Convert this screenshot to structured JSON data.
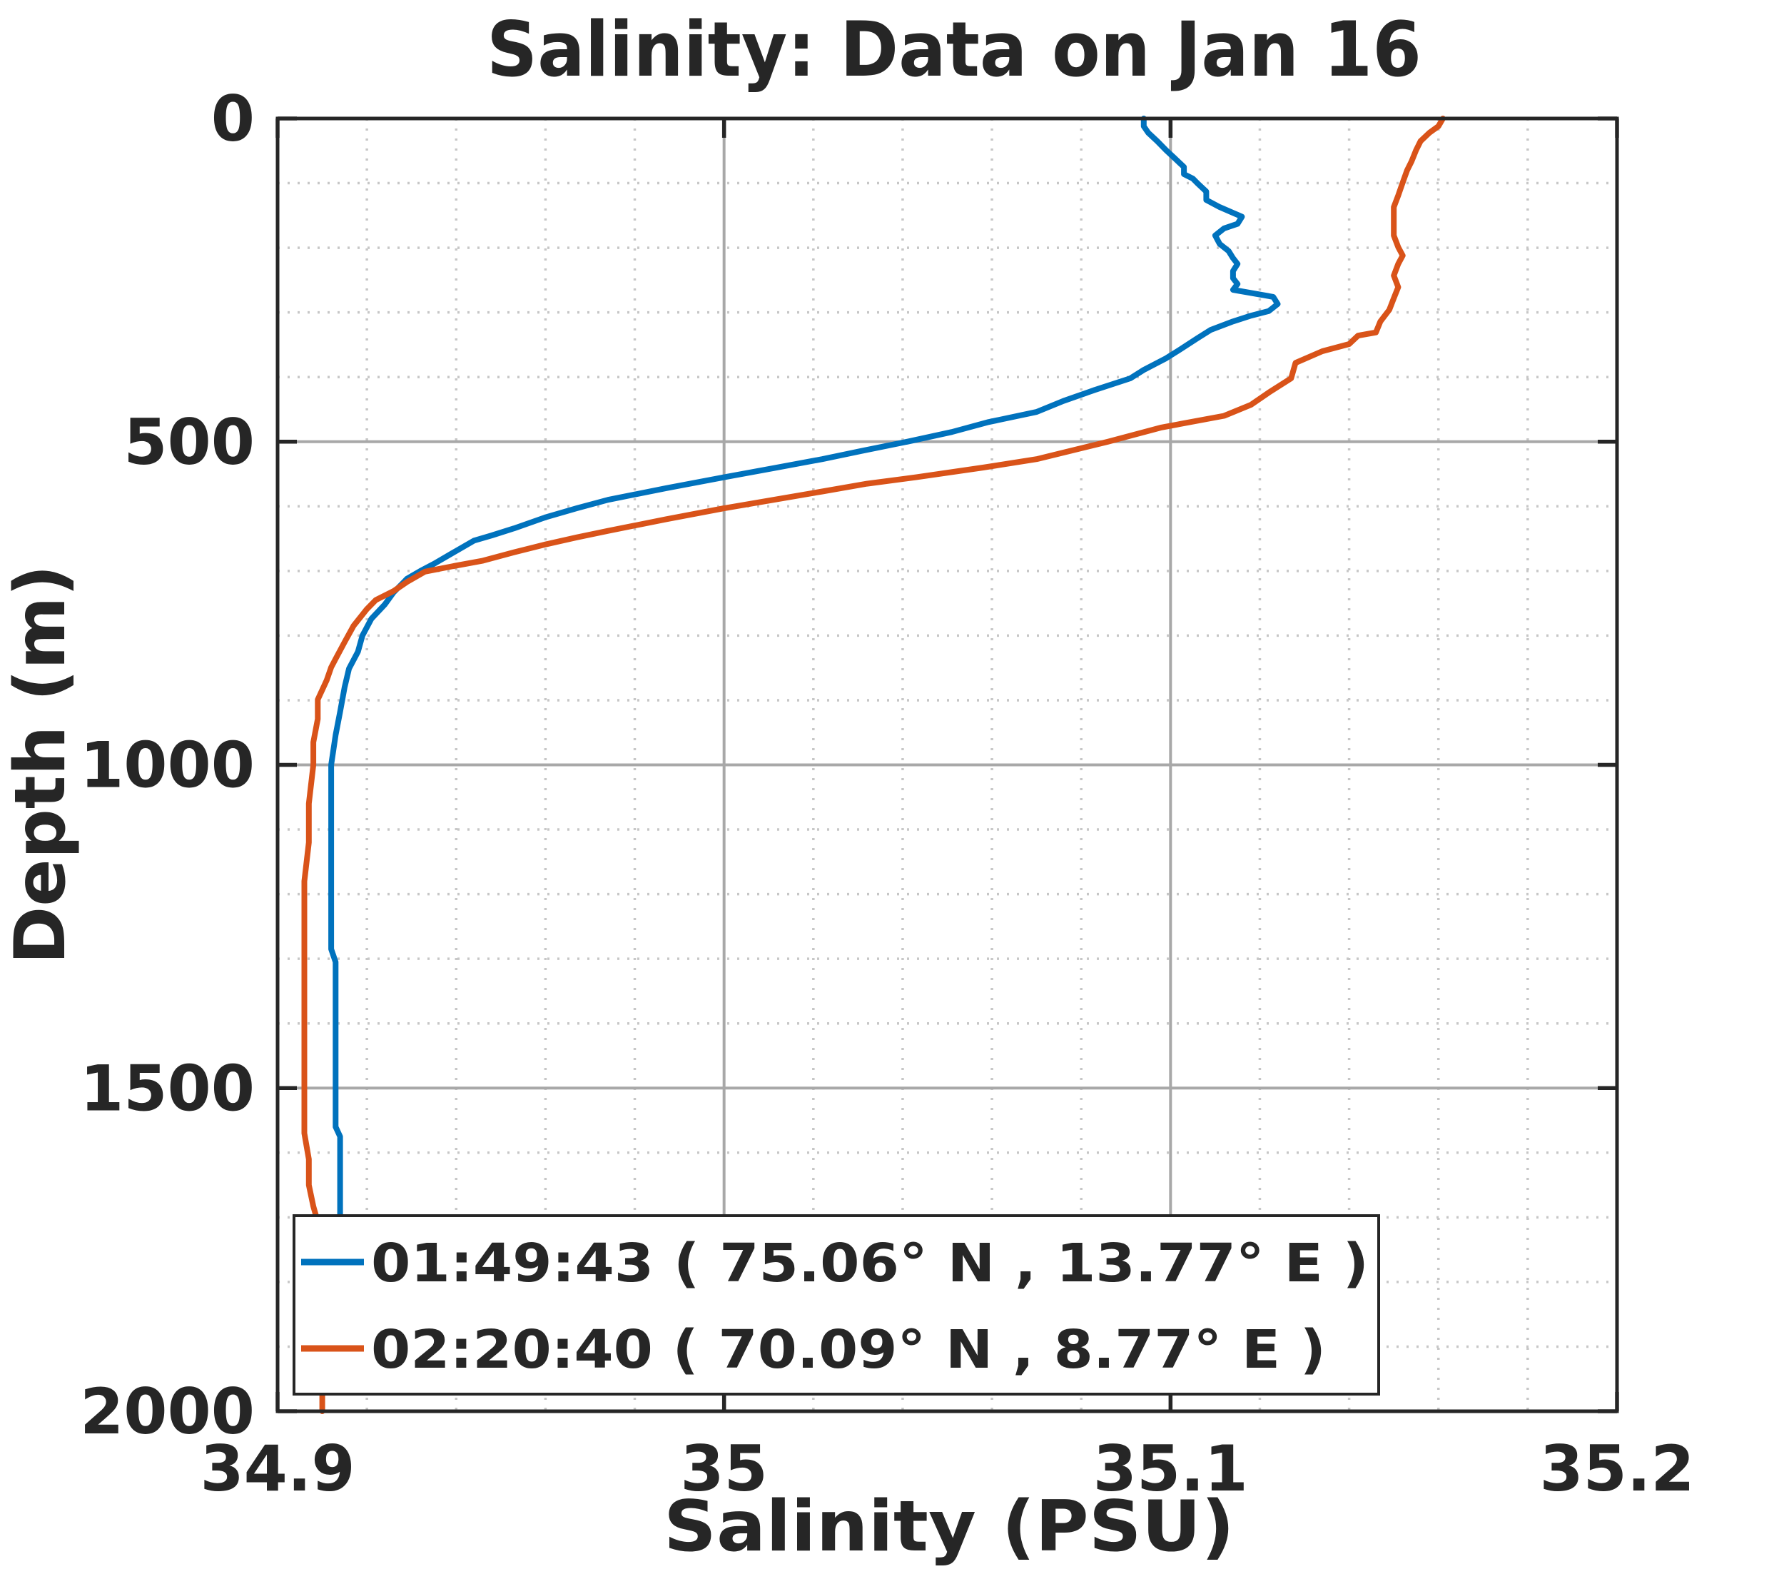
{
  "figure": {
    "background": "#ffffff"
  },
  "chart_data": {
    "type": "line",
    "title": "Salinity: Data on Jan 16",
    "xlabel": "Salinity (PSU)",
    "ylabel": "Depth (m)",
    "xlim": [
      34.9,
      35.2
    ],
    "ylim": [
      0,
      2000
    ],
    "y_axis_direction": "reversed",
    "grid": "on",
    "minor_grid": "on",
    "x_minor_step": 0.02,
    "y_minor_step": 100,
    "x_ticks": {
      "values": [
        34.9,
        35.0,
        35.1,
        35.2
      ],
      "labels": [
        "34.9",
        "35",
        "35.1",
        "35.2"
      ]
    },
    "y_ticks": {
      "values": [
        0,
        500,
        1000,
        1500,
        2000
      ],
      "labels": [
        "0",
        "500",
        "1000",
        "1500",
        "2000"
      ]
    },
    "colors": {
      "series_blue": "#0072BD",
      "series_orange": "#D95319",
      "grid_major": "#a8a8a8",
      "grid_minor": "#c7c7c7",
      "frame": "#262626",
      "text": "#262626",
      "legend_background": "#ffffff"
    },
    "legend": {
      "position": "southwest",
      "entries": [
        {
          "label": "01:49:43 ( 75.06° N , 13.77° E )",
          "color": "#0072BD"
        },
        {
          "label": "02:20:40 ( 70.09° N , 8.77° E )",
          "color": "#D95319"
        }
      ]
    },
    "point_format": [
      "depth_m",
      "salinity_psu"
    ],
    "series": [
      {
        "name": "01:49:43 ( 75.06° N , 13.77° E )",
        "color": "#0072BD",
        "points": [
          [
            0,
            35.094
          ],
          [
            12,
            35.094
          ],
          [
            22,
            35.095
          ],
          [
            35,
            35.097
          ],
          [
            49,
            35.099
          ],
          [
            62,
            35.101
          ],
          [
            75,
            35.103
          ],
          [
            86,
            35.103
          ],
          [
            93,
            35.105
          ],
          [
            100,
            35.106
          ],
          [
            113,
            35.108
          ],
          [
            126,
            35.108
          ],
          [
            137,
            35.111
          ],
          [
            146,
            35.114
          ],
          [
            152,
            35.116
          ],
          [
            163,
            35.115
          ],
          [
            170,
            35.112
          ],
          [
            181,
            35.11
          ],
          [
            194,
            35.111
          ],
          [
            205,
            35.113
          ],
          [
            216,
            35.114
          ],
          [
            225,
            35.115
          ],
          [
            236,
            35.114
          ],
          [
            247,
            35.114
          ],
          [
            256,
            35.115
          ],
          [
            265,
            35.114
          ],
          [
            276,
            35.123
          ],
          [
            287,
            35.124
          ],
          [
            298,
            35.122
          ],
          [
            305,
            35.118
          ],
          [
            314,
            35.114
          ],
          [
            327,
            35.109
          ],
          [
            340,
            35.106
          ],
          [
            358,
            35.102
          ],
          [
            371,
            35.099
          ],
          [
            389,
            35.094
          ],
          [
            402,
            35.091
          ],
          [
            420,
            35.083
          ],
          [
            437,
            35.076
          ],
          [
            454,
            35.07
          ],
          [
            470,
            35.059
          ],
          [
            485,
            35.051
          ],
          [
            500,
            35.041
          ],
          [
            514,
            35.031
          ],
          [
            527,
            35.022
          ],
          [
            541,
            35.011
          ],
          [
            555,
            35.0
          ],
          [
            572,
            34.987
          ],
          [
            590,
            34.974
          ],
          [
            603,
            34.967
          ],
          [
            617,
            34.96
          ],
          [
            634,
            34.953
          ],
          [
            645,
            34.948
          ],
          [
            653,
            34.944
          ],
          [
            673,
            34.939
          ],
          [
            689,
            34.935
          ],
          [
            700,
            34.932
          ],
          [
            712,
            34.929
          ],
          [
            719,
            34.928
          ],
          [
            733,
            34.926
          ],
          [
            752,
            34.924
          ],
          [
            774,
            34.921
          ],
          [
            800,
            34.919
          ],
          [
            825,
            34.918
          ],
          [
            851,
            34.916
          ],
          [
            880,
            34.915
          ],
          [
            918,
            34.914
          ],
          [
            954,
            34.913
          ],
          [
            1000,
            34.912
          ],
          [
            1060,
            34.912
          ],
          [
            1120,
            34.912
          ],
          [
            1180,
            34.912
          ],
          [
            1240,
            34.912
          ],
          [
            1285,
            34.912
          ],
          [
            1305,
            34.913
          ],
          [
            1360,
            34.913
          ],
          [
            1420,
            34.913
          ],
          [
            1480,
            34.913
          ],
          [
            1540,
            34.913
          ],
          [
            1560,
            34.913
          ],
          [
            1575,
            34.914
          ],
          [
            1620,
            34.914
          ],
          [
            1662,
            34.914
          ],
          [
            1705,
            34.914
          ]
        ]
      },
      {
        "name": "02:20:40 ( 70.09° N , 8.77° E )",
        "color": "#D95319",
        "points": [
          [
            0,
            35.161
          ],
          [
            12,
            35.16
          ],
          [
            22,
            35.158
          ],
          [
            35,
            35.156
          ],
          [
            49,
            35.155
          ],
          [
            66,
            35.154
          ],
          [
            80,
            35.153
          ],
          [
            99,
            35.152
          ],
          [
            119,
            35.151
          ],
          [
            137,
            35.15
          ],
          [
            159,
            35.15
          ],
          [
            181,
            35.15
          ],
          [
            199,
            35.151
          ],
          [
            212,
            35.152
          ],
          [
            225,
            35.151
          ],
          [
            243,
            35.15
          ],
          [
            261,
            35.151
          ],
          [
            278,
            35.15
          ],
          [
            296,
            35.149
          ],
          [
            314,
            35.147
          ],
          [
            331,
            35.146
          ],
          [
            336,
            35.142
          ],
          [
            349,
            35.14
          ],
          [
            360,
            35.134
          ],
          [
            378,
            35.128
          ],
          [
            402,
            35.127
          ],
          [
            424,
            35.122
          ],
          [
            443,
            35.118
          ],
          [
            460,
            35.112
          ],
          [
            478,
            35.098
          ],
          [
            500,
            35.086
          ],
          [
            527,
            35.07
          ],
          [
            540,
            35.058
          ],
          [
            555,
            35.043
          ],
          [
            565,
            35.032
          ],
          [
            577,
            35.022
          ],
          [
            603,
            35.0
          ],
          [
            620,
            34.987
          ],
          [
            638,
            34.974
          ],
          [
            648,
            34.967
          ],
          [
            659,
            34.96
          ],
          [
            671,
            34.953
          ],
          [
            684,
            34.946
          ],
          [
            693,
            34.939
          ],
          [
            701,
            34.933
          ],
          [
            717,
            34.929
          ],
          [
            731,
            34.926
          ],
          [
            745,
            34.922
          ],
          [
            759,
            34.92
          ],
          [
            785,
            34.917
          ],
          [
            810,
            34.915
          ],
          [
            836,
            34.913
          ],
          [
            849,
            34.912
          ],
          [
            869,
            34.911
          ],
          [
            899,
            34.909
          ],
          [
            929,
            34.909
          ],
          [
            965,
            34.908
          ],
          [
            1000,
            34.908
          ],
          [
            1060,
            34.907
          ],
          [
            1120,
            34.907
          ],
          [
            1180,
            34.906
          ],
          [
            1240,
            34.906
          ],
          [
            1300,
            34.906
          ],
          [
            1360,
            34.906
          ],
          [
            1420,
            34.906
          ],
          [
            1480,
            34.906
          ],
          [
            1530,
            34.906
          ],
          [
            1570,
            34.906
          ],
          [
            1610,
            34.907
          ],
          [
            1650,
            34.907
          ],
          [
            1683,
            34.908
          ],
          [
            1707,
            34.909
          ],
          [
            1760,
            34.909
          ],
          [
            1820,
            34.909
          ],
          [
            1880,
            34.91
          ],
          [
            1940,
            34.91
          ],
          [
            2000,
            34.91
          ]
        ]
      }
    ]
  }
}
